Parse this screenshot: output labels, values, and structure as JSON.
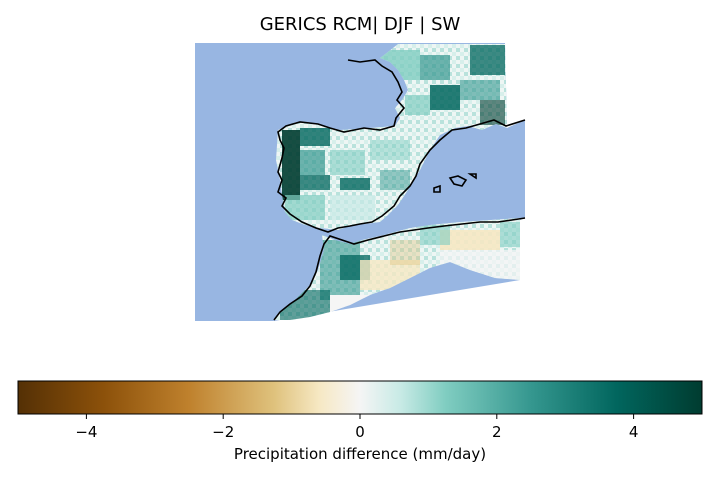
{
  "title": "GERICS RCM| DJF | SW",
  "map": {
    "ocean_color": "#98b6e2",
    "land_stroke": "#000000"
  },
  "colorbar": {
    "label": "Precipitation difference (mm/day)",
    "min": -5,
    "max": 5,
    "ticks": [
      -4,
      -2,
      0,
      2,
      4
    ],
    "tick_labels": [
      "−4",
      "−2",
      "0",
      "2",
      "4"
    ],
    "colormap": "BrBG",
    "stops": [
      {
        "value": -5,
        "color": "#543005"
      },
      {
        "value": -3.75,
        "color": "#8c510a"
      },
      {
        "value": -2.5,
        "color": "#bf812d"
      },
      {
        "value": -1.25,
        "color": "#dfc27d"
      },
      {
        "value": -0.6,
        "color": "#f6e8c3"
      },
      {
        "value": 0,
        "color": "#f5f5f5"
      },
      {
        "value": 0.6,
        "color": "#c7eae5"
      },
      {
        "value": 1.25,
        "color": "#80cdc1"
      },
      {
        "value": 2.5,
        "color": "#35978f"
      },
      {
        "value": 3.75,
        "color": "#01665e"
      },
      {
        "value": 5,
        "color": "#003c30"
      }
    ]
  }
}
